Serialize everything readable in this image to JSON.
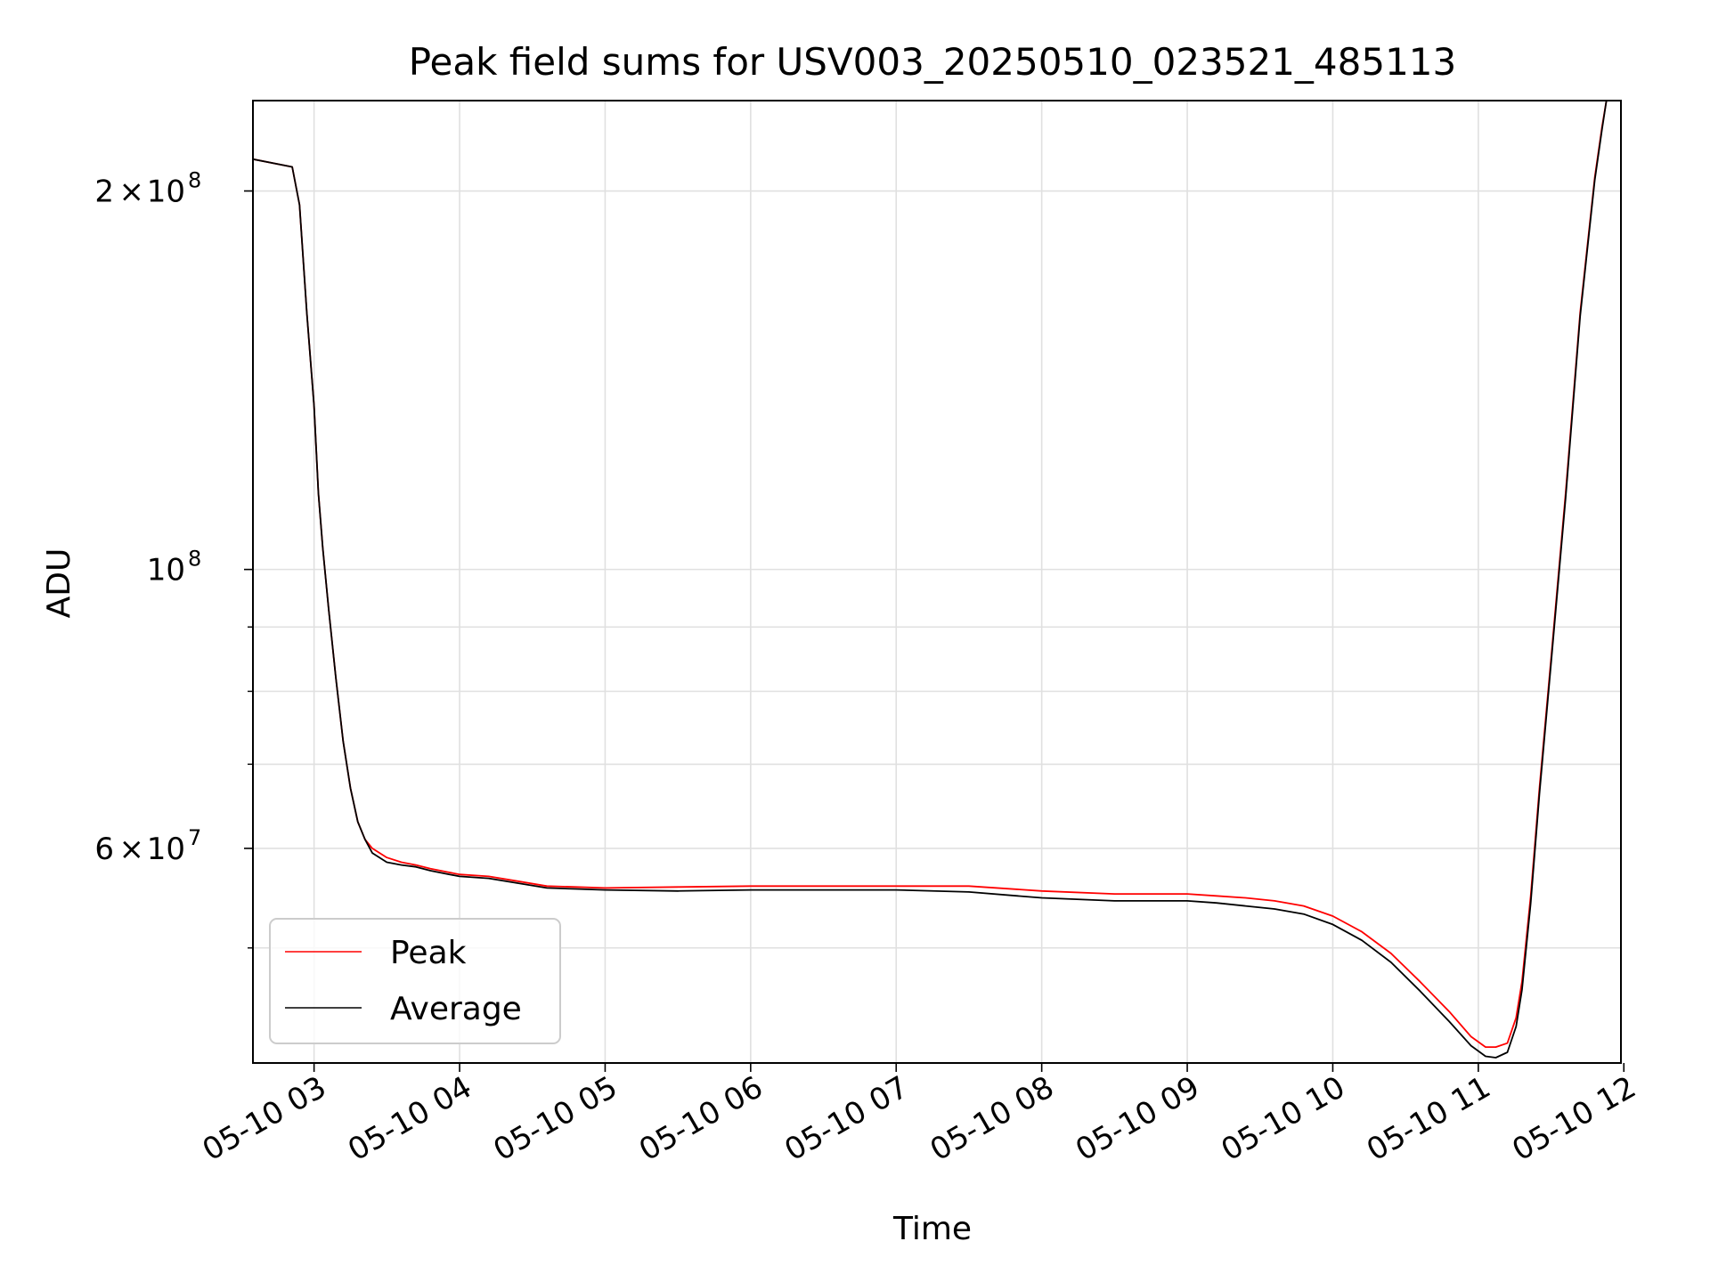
{
  "chart_data": {
    "type": "line",
    "title": "Peak field sums for USV003_20250510_023521_485113",
    "xlabel": "Time",
    "ylabel": "ADU",
    "yscale": "log",
    "xlim": [
      2.58,
      11.98
    ],
    "ylim": [
      40500000,
      236000000
    ],
    "grid": true,
    "x_ticks": [
      {
        "value": 3,
        "label": "05-10 03"
      },
      {
        "value": 4,
        "label": "05-10 04"
      },
      {
        "value": 5,
        "label": "05-10 05"
      },
      {
        "value": 6,
        "label": "05-10 06"
      },
      {
        "value": 7,
        "label": "05-10 07"
      },
      {
        "value": 8,
        "label": "05-10 08"
      },
      {
        "value": 9,
        "label": "05-10 09"
      },
      {
        "value": 10,
        "label": "05-10 10"
      },
      {
        "value": 11,
        "label": "05-10 11"
      },
      {
        "value": 12,
        "label": "05-10 12"
      }
    ],
    "y_major_ticks": [
      {
        "value": 200000000,
        "mantissa": "2",
        "times": "×",
        "base": "10",
        "exponent": "8"
      },
      {
        "value": 100000000,
        "mantissa": "",
        "times": "",
        "base": "10",
        "exponent": "8"
      },
      {
        "value": 60000000,
        "mantissa": "6",
        "times": "×",
        "base": "10",
        "exponent": "7"
      }
    ],
    "y_minor_ticks": [
      50000000,
      70000000,
      80000000,
      90000000
    ],
    "legend_position": "lower-left",
    "series": [
      {
        "name": "Peak",
        "color": "#ff0000",
        "x": [
          2.58,
          2.85,
          2.9,
          2.95,
          3.0,
          3.03,
          3.06,
          3.1,
          3.15,
          3.2,
          3.25,
          3.3,
          3.35,
          3.4,
          3.5,
          3.6,
          3.7,
          3.8,
          3.9,
          4.0,
          4.2,
          4.4,
          4.6,
          4.8,
          5.0,
          5.5,
          6.0,
          6.5,
          7.0,
          7.5,
          8.0,
          8.5,
          9.0,
          9.2,
          9.4,
          9.6,
          9.8,
          10.0,
          10.2,
          10.4,
          10.6,
          10.8,
          10.95,
          11.05,
          11.12,
          11.2,
          11.26,
          11.3,
          11.36,
          11.42,
          11.5,
          11.6,
          11.7,
          11.8,
          11.85,
          11.88
        ],
        "y": [
          212000000,
          209000000,
          195000000,
          160000000,
          135000000,
          115000000,
          104000000,
          93000000,
          82000000,
          73000000,
          67000000,
          63000000,
          61000000,
          60000000,
          59000000,
          58500000,
          58200000,
          57800000,
          57500000,
          57200000,
          57000000,
          56500000,
          56000000,
          55900000,
          55800000,
          55900000,
          56000000,
          56000000,
          56000000,
          56000000,
          55500000,
          55200000,
          55200000,
          55000000,
          54800000,
          54500000,
          54000000,
          53000000,
          51500000,
          49500000,
          47000000,
          44500000,
          42500000,
          41700000,
          41700000,
          42000000,
          44000000,
          47000000,
          55000000,
          67000000,
          85000000,
          115000000,
          160000000,
          205000000,
          225000000,
          236000000
        ]
      },
      {
        "name": "Average",
        "color": "#000000",
        "x": [
          2.58,
          2.85,
          2.9,
          2.95,
          3.0,
          3.03,
          3.06,
          3.1,
          3.15,
          3.2,
          3.25,
          3.3,
          3.35,
          3.4,
          3.5,
          3.6,
          3.7,
          3.8,
          3.9,
          4.0,
          4.2,
          4.4,
          4.6,
          4.8,
          5.0,
          5.5,
          6.0,
          6.5,
          7.0,
          7.5,
          8.0,
          8.5,
          9.0,
          9.2,
          9.4,
          9.6,
          9.8,
          10.0,
          10.2,
          10.4,
          10.6,
          10.8,
          10.95,
          11.05,
          11.12,
          11.2,
          11.26,
          11.3,
          11.36,
          11.42,
          11.5,
          11.6,
          11.7,
          11.8,
          11.85,
          11.88
        ],
        "y": [
          212000000,
          209000000,
          195000000,
          160000000,
          135000000,
          115000000,
          104000000,
          93000000,
          82000000,
          73000000,
          67000000,
          63000000,
          61000000,
          59500000,
          58500000,
          58200000,
          58000000,
          57600000,
          57300000,
          57000000,
          56800000,
          56300000,
          55800000,
          55700000,
          55600000,
          55500000,
          55600000,
          55600000,
          55600000,
          55400000,
          54800000,
          54500000,
          54500000,
          54300000,
          54000000,
          53700000,
          53200000,
          52200000,
          50700000,
          48700000,
          46200000,
          43700000,
          41800000,
          41000000,
          40900000,
          41300000,
          43300000,
          46300000,
          54300000,
          66300000,
          84300000,
          114000000,
          159000000,
          204000000,
          224000000,
          236000000
        ]
      }
    ]
  }
}
